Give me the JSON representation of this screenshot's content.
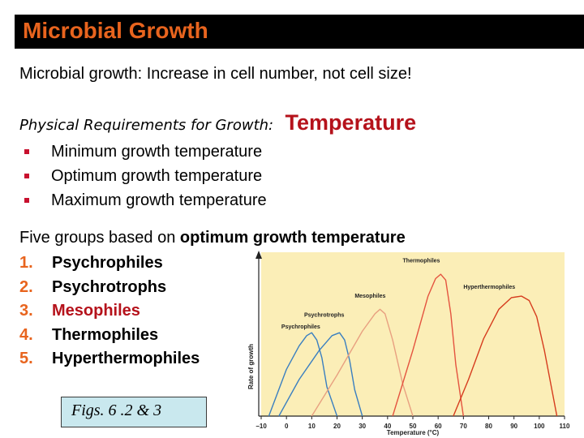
{
  "slide": {
    "title": "Microbial Growth",
    "intro": "Microbial growth:  Increase in cell number, not cell size!",
    "requirements_label": "Physical Requirements for Growth:",
    "requirements_highlight": "Temperature",
    "bullets": [
      "Minimum growth temperature",
      "Optimum growth temperature",
      "Maximum growth temperature"
    ],
    "five_groups_prefix": "Five groups based on ",
    "five_groups_bold": "optimum growth temperature",
    "groups": [
      {
        "num": "1.",
        "label": "Psychrophiles"
      },
      {
        "num": "2.",
        "label": "Psychrotrophs"
      },
      {
        "num": "3.",
        "label": "Mesophiles"
      },
      {
        "num": "4.",
        "label": "Thermophiles"
      },
      {
        "num": "5.",
        "label": "Hyperthermophiles"
      }
    ],
    "figure_caption": "Figs. 6 .2 & 3"
  },
  "colors": {
    "title_text": "#e8641e",
    "title_bar": "#000000",
    "highlight": "#b5121b",
    "chart_bg": "#fbeeb7"
  },
  "chart_data": {
    "type": "line",
    "xlabel": "Temperature (°C)",
    "ylabel": "Rate of growth",
    "xlim": [
      -10,
      110
    ],
    "xticks": [
      -10,
      0,
      10,
      20,
      30,
      40,
      50,
      60,
      70,
      80,
      90,
      100,
      110
    ],
    "series": [
      {
        "name": "Psychrophiles",
        "color": "#3a7fc0",
        "label_at": [
          -2,
          0.6
        ],
        "x": [
          -7,
          0,
          5,
          8,
          10,
          12,
          14,
          16,
          20
        ],
        "y": [
          0,
          0.32,
          0.48,
          0.55,
          0.57,
          0.52,
          0.4,
          0.2,
          0
        ]
      },
      {
        "name": "Psychrotrophs",
        "color": "#3a7fc0",
        "label_at": [
          7,
          0.68
        ],
        "x": [
          -3,
          5,
          13,
          18,
          21,
          23,
          25,
          27,
          30
        ],
        "y": [
          0,
          0.25,
          0.45,
          0.55,
          0.57,
          0.52,
          0.38,
          0.18,
          0
        ]
      },
      {
        "name": "Mesophiles",
        "color": "#e8a080",
        "label_at": [
          27,
          0.81
        ],
        "x": [
          10,
          20,
          30,
          35,
          37,
          39,
          42,
          46,
          50
        ],
        "y": [
          0,
          0.28,
          0.58,
          0.7,
          0.73,
          0.7,
          0.52,
          0.22,
          0
        ]
      },
      {
        "name": "Thermophiles",
        "color": "#e4533f",
        "label_at": [
          46,
          1.05
        ],
        "x": [
          42,
          50,
          56,
          59,
          61,
          63,
          65,
          67,
          70
        ],
        "y": [
          0,
          0.45,
          0.82,
          0.94,
          0.97,
          0.93,
          0.7,
          0.35,
          0
        ]
      },
      {
        "name": "Hyperthermophiles",
        "color": "#d63c1e",
        "label_at": [
          70,
          0.87
        ],
        "x": [
          66,
          72,
          78,
          84,
          89,
          93,
          96,
          99,
          102,
          105,
          107
        ],
        "y": [
          0,
          0.25,
          0.53,
          0.73,
          0.81,
          0.82,
          0.79,
          0.68,
          0.45,
          0.18,
          0
        ]
      }
    ]
  }
}
